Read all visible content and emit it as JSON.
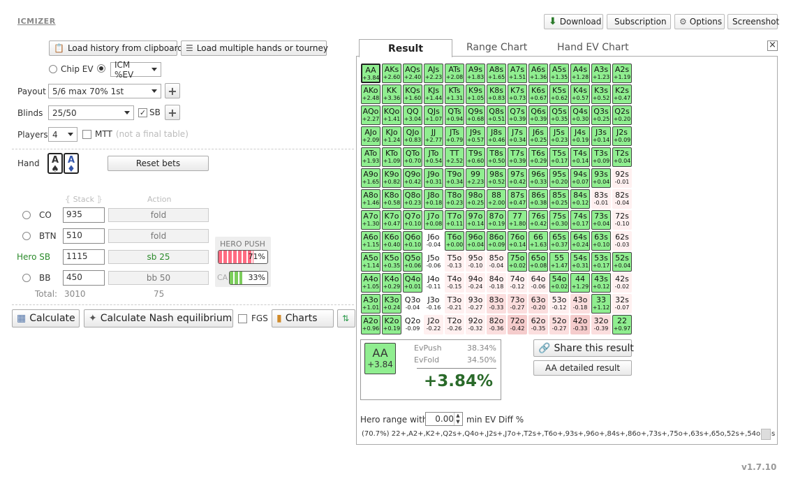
{
  "app": {
    "logo": "ICMIZER",
    "version": "v1.7.10"
  },
  "topbar": {
    "download": "Download",
    "subscription": "Subscription",
    "options": "Options",
    "screenshot": "Screenshot"
  },
  "load": {
    "history": "Load history from clipboard",
    "multiple": "Load multiple hands or tourney"
  },
  "mode": {
    "chip_ev": "Chip EV",
    "icm": "ICM %EV"
  },
  "payout": {
    "label": "Payout",
    "value": "5/6 max 70% 1st"
  },
  "blinds": {
    "label": "Blinds",
    "value": "25/50",
    "sb_label": "SB"
  },
  "players": {
    "label": "Players",
    "value": "4",
    "mtt_label": "MTT",
    "mtt_note": "(not a final table)"
  },
  "hand": {
    "label": "Hand",
    "card1": "A",
    "card1_suit": "♠",
    "card2": "A",
    "card2_suit": "♦",
    "reset": "Reset bets"
  },
  "table": {
    "stack_header": "Stack",
    "action_header": "Action",
    "rows": [
      {
        "pos": "CO",
        "stack": "935",
        "action": "fold"
      },
      {
        "pos": "BTN",
        "stack": "510",
        "action": "fold"
      },
      {
        "pos": "Hero SB",
        "stack": "1115",
        "action": "sb 25"
      },
      {
        "pos": "BB",
        "stack": "450",
        "action": "bb 50"
      }
    ],
    "total_label": "Total:",
    "total_stack": "3010",
    "total_action": "75"
  },
  "hero_push": {
    "label": "HERO PUSH",
    "pct": "71%",
    "pct_value": 71,
    "ca_label": "CA",
    "ca_pct": "33%",
    "ca_value": 33
  },
  "bottom": {
    "calculate": "Calculate",
    "nash": "Calculate Nash equilibrium",
    "fgs": "FGS",
    "charts": "Charts"
  },
  "result": {
    "tabs": [
      "Result",
      "Range Chart",
      "Hand EV Chart"
    ],
    "close": "×",
    "grid": [
      [
        "AA",
        "+3.84",
        "g"
      ],
      [
        "AKs",
        "+2.60",
        "g"
      ],
      [
        "AQs",
        "+2.40",
        "g"
      ],
      [
        "AJs",
        "+2.23",
        "g"
      ],
      [
        "ATs",
        "+2.08",
        "g"
      ],
      [
        "A9s",
        "+1.83",
        "g"
      ],
      [
        "A8s",
        "+1.65",
        "g"
      ],
      [
        "A7s",
        "+1.51",
        "g"
      ],
      [
        "A6s",
        "+1.36",
        "g"
      ],
      [
        "A5s",
        "+1.35",
        "g"
      ],
      [
        "A4s",
        "+1.28",
        "g"
      ],
      [
        "A3s",
        "+1.23",
        "g"
      ],
      [
        "A2s",
        "+1.19",
        "g"
      ],
      [
        "AKo",
        "+2.48",
        "g"
      ],
      [
        "KK",
        "+3.36",
        "g"
      ],
      [
        "KQs",
        "+1.60",
        "g"
      ],
      [
        "KJs",
        "+1.44",
        "g"
      ],
      [
        "KTs",
        "+1.31",
        "g"
      ],
      [
        "K9s",
        "+1.05",
        "g"
      ],
      [
        "K8s",
        "+0.83",
        "g"
      ],
      [
        "K7s",
        "+0.73",
        "g"
      ],
      [
        "K6s",
        "+0.67",
        "g"
      ],
      [
        "K5s",
        "+0.62",
        "g"
      ],
      [
        "K4s",
        "+0.57",
        "g"
      ],
      [
        "K3s",
        "+0.52",
        "g"
      ],
      [
        "K2s",
        "+0.47",
        "g"
      ],
      [
        "AQo",
        "+2.27",
        "g"
      ],
      [
        "KQo",
        "+1.41",
        "g"
      ],
      [
        "QQ",
        "+3.04",
        "g"
      ],
      [
        "QJs",
        "+1.07",
        "g"
      ],
      [
        "QTs",
        "+0.94",
        "g"
      ],
      [
        "Q9s",
        "+0.68",
        "g"
      ],
      [
        "Q8s",
        "+0.51",
        "g"
      ],
      [
        "Q7s",
        "+0.39",
        "g"
      ],
      [
        "Q6s",
        "+0.39",
        "g"
      ],
      [
        "Q5s",
        "+0.35",
        "g"
      ],
      [
        "Q4s",
        "+0.30",
        "g"
      ],
      [
        "Q3s",
        "+0.25",
        "g"
      ],
      [
        "Q2s",
        "+0.20",
        "g"
      ],
      [
        "AJo",
        "+2.09",
        "g"
      ],
      [
        "KJo",
        "+1.24",
        "g"
      ],
      [
        "QJo",
        "+0.83",
        "g"
      ],
      [
        "JJ",
        "+2.77",
        "g"
      ],
      [
        "JTs",
        "+0.79",
        "g"
      ],
      [
        "J9s",
        "+0.57",
        "g"
      ],
      [
        "J8s",
        "+0.46",
        "g"
      ],
      [
        "J7s",
        "+0.34",
        "g"
      ],
      [
        "J6s",
        "+0.25",
        "g"
      ],
      [
        "J5s",
        "+0.23",
        "g"
      ],
      [
        "J4s",
        "+0.19",
        "g"
      ],
      [
        "J3s",
        "+0.14",
        "g"
      ],
      [
        "J2s",
        "+0.09",
        "g"
      ],
      [
        "ATo",
        "+1.93",
        "g"
      ],
      [
        "KTo",
        "+1.09",
        "g"
      ],
      [
        "QTo",
        "+0.70",
        "g"
      ],
      [
        "JTo",
        "+0.54",
        "g"
      ],
      [
        "TT",
        "+2.52",
        "g"
      ],
      [
        "T9s",
        "+0.60",
        "g"
      ],
      [
        "T8s",
        "+0.50",
        "g"
      ],
      [
        "T7s",
        "+0.39",
        "g"
      ],
      [
        "T6s",
        "+0.29",
        "g"
      ],
      [
        "T5s",
        "+0.17",
        "g"
      ],
      [
        "T4s",
        "+0.14",
        "g"
      ],
      [
        "T3s",
        "+0.09",
        "g"
      ],
      [
        "T2s",
        "+0.04",
        "g"
      ],
      [
        "A9o",
        "+1.65",
        "g"
      ],
      [
        "K9o",
        "+0.82",
        "g"
      ],
      [
        "Q9o",
        "+0.42",
        "g"
      ],
      [
        "J9o",
        "+0.31",
        "g"
      ],
      [
        "T9o",
        "+0.34",
        "g"
      ],
      [
        "99",
        "+2.23",
        "g"
      ],
      [
        "98s",
        "+0.52",
        "g"
      ],
      [
        "97s",
        "+0.42",
        "g"
      ],
      [
        "96s",
        "+0.33",
        "g"
      ],
      [
        "95s",
        "+0.20",
        "g"
      ],
      [
        "94s",
        "+0.07",
        "g"
      ],
      [
        "93s",
        "+0.04",
        "g"
      ],
      [
        "92s",
        "-0.01",
        "n1"
      ],
      [
        "A8o",
        "+1.46",
        "g"
      ],
      [
        "K8o",
        "+0.58",
        "g"
      ],
      [
        "Q8o",
        "+0.23",
        "g"
      ],
      [
        "J8o",
        "+0.18",
        "g"
      ],
      [
        "T8o",
        "+0.23",
        "g"
      ],
      [
        "98o",
        "+0.25",
        "g"
      ],
      [
        "88",
        "+2.00",
        "g"
      ],
      [
        "87s",
        "+0.47",
        "g"
      ],
      [
        "86s",
        "+0.38",
        "g"
      ],
      [
        "85s",
        "+0.25",
        "g"
      ],
      [
        "84s",
        "+0.12",
        "g"
      ],
      [
        "83s",
        "-0.01",
        "n1"
      ],
      [
        "82s",
        "-0.04",
        "n1"
      ],
      [
        "A7o",
        "+1.30",
        "g"
      ],
      [
        "K7o",
        "+0.47",
        "g"
      ],
      [
        "Q7o",
        "+0.10",
        "g"
      ],
      [
        "J7o",
        "+0.08",
        "g"
      ],
      [
        "T7o",
        "+0.11",
        "g"
      ],
      [
        "97o",
        "+0.14",
        "g"
      ],
      [
        "87o",
        "+0.19",
        "g"
      ],
      [
        "77",
        "+1.80",
        "g"
      ],
      [
        "76s",
        "+0.42",
        "g"
      ],
      [
        "75s",
        "+0.30",
        "g"
      ],
      [
        "74s",
        "+0.17",
        "g"
      ],
      [
        "73s",
        "+0.04",
        "g"
      ],
      [
        "72s",
        "-0.10",
        "n1"
      ],
      [
        "A6o",
        "+1.15",
        "g"
      ],
      [
        "K6o",
        "+0.40",
        "g"
      ],
      [
        "Q6o",
        "+0.10",
        "g"
      ],
      [
        "J6o",
        "-0.04",
        "w"
      ],
      [
        "T6o",
        "+0.00",
        "g"
      ],
      [
        "96o",
        "+0.04",
        "g"
      ],
      [
        "86o",
        "+0.09",
        "g"
      ],
      [
        "76o",
        "+0.14",
        "g"
      ],
      [
        "66",
        "+1.63",
        "g"
      ],
      [
        "65s",
        "+0.37",
        "g"
      ],
      [
        "64s",
        "+0.24",
        "g"
      ],
      [
        "63s",
        "+0.10",
        "g"
      ],
      [
        "62s",
        "-0.03",
        "n1"
      ],
      [
        "A5o",
        "+1.14",
        "g"
      ],
      [
        "K5o",
        "+0.35",
        "g"
      ],
      [
        "Q5o",
        "+0.06",
        "g"
      ],
      [
        "J5o",
        "-0.06",
        "w"
      ],
      [
        "T5o",
        "-0.13",
        "n1"
      ],
      [
        "95o",
        "-0.10",
        "n1"
      ],
      [
        "85o",
        "-0.04",
        "n1"
      ],
      [
        "75o",
        "+0.02",
        "g"
      ],
      [
        "65o",
        "+0.08",
        "g"
      ],
      [
        "55",
        "+1.47",
        "g"
      ],
      [
        "54s",
        "+0.31",
        "g"
      ],
      [
        "53s",
        "+0.17",
        "g"
      ],
      [
        "52s",
        "+0.04",
        "g"
      ],
      [
        "A4o",
        "+1.05",
        "g"
      ],
      [
        "K4o",
        "+0.29",
        "g"
      ],
      [
        "Q4o",
        "+0.01",
        "g"
      ],
      [
        "J4o",
        "-0.11",
        "w"
      ],
      [
        "T4o",
        "-0.15",
        "n1"
      ],
      [
        "94o",
        "-0.24",
        "n1"
      ],
      [
        "84o",
        "-0.18",
        "n1"
      ],
      [
        "74o",
        "-0.12",
        "n1"
      ],
      [
        "64o",
        "-0.06",
        "n1"
      ],
      [
        "54o",
        "+0.02",
        "g"
      ],
      [
        "44",
        "+1.29",
        "g"
      ],
      [
        "43s",
        "+0.12",
        "g"
      ],
      [
        "42s",
        "-0.02",
        "n1"
      ],
      [
        "A3o",
        "+1.01",
        "g"
      ],
      [
        "K3o",
        "+0.24",
        "g"
      ],
      [
        "Q3o",
        "-0.04",
        "w"
      ],
      [
        "J3o",
        "-0.16",
        "w"
      ],
      [
        "T3o",
        "-0.21",
        "n1"
      ],
      [
        "93o",
        "-0.27",
        "n1"
      ],
      [
        "83o",
        "-0.33",
        "n2"
      ],
      [
        "73o",
        "-0.27",
        "n2"
      ],
      [
        "63o",
        "-0.20",
        "n2"
      ],
      [
        "53o",
        "-0.12",
        "n1"
      ],
      [
        "43o",
        "-0.18",
        "n2"
      ],
      [
        "33",
        "+1.12",
        "g"
      ],
      [
        "32s",
        "-0.07",
        "n1"
      ],
      [
        "A2o",
        "+0.96",
        "g"
      ],
      [
        "K2o",
        "+0.19",
        "g"
      ],
      [
        "Q2o",
        "-0.09",
        "w"
      ],
      [
        "J2o",
        "-0.22",
        "n1"
      ],
      [
        "T2o",
        "-0.26",
        "n1"
      ],
      [
        "92o",
        "-0.32",
        "n1"
      ],
      [
        "82o",
        "-0.36",
        "n2"
      ],
      [
        "72o",
        "-0.42",
        "n3"
      ],
      [
        "62o",
        "-0.35",
        "n2"
      ],
      [
        "52o",
        "-0.27",
        "n2"
      ],
      [
        "42o",
        "-0.33",
        "n3"
      ],
      [
        "32o",
        "-0.39",
        "n2"
      ],
      [
        "22",
        "+0.97",
        "g"
      ]
    ],
    "detail": {
      "hand": "AA",
      "ev": "+3.84",
      "ev_push_label": "EvPush",
      "ev_push": "38.34%",
      "ev_fold_label": "EvFold",
      "ev_fold": "34.50%",
      "diff": "+3.84%"
    },
    "share": "Share this result",
    "detailed": "AA detailed result",
    "range_label": "Hero range with",
    "range_value": "0.00",
    "range_suffix": "min EV Diff %",
    "range_text": "(70.7%) 22+,A2+,K2+,Q2s+,Q4o+,J2s+,J7o+,T2s+,T6o+,93s+,96o+,84s+,86o+,73s+,75o+,63s+,65o,52s+,54o,43s"
  }
}
